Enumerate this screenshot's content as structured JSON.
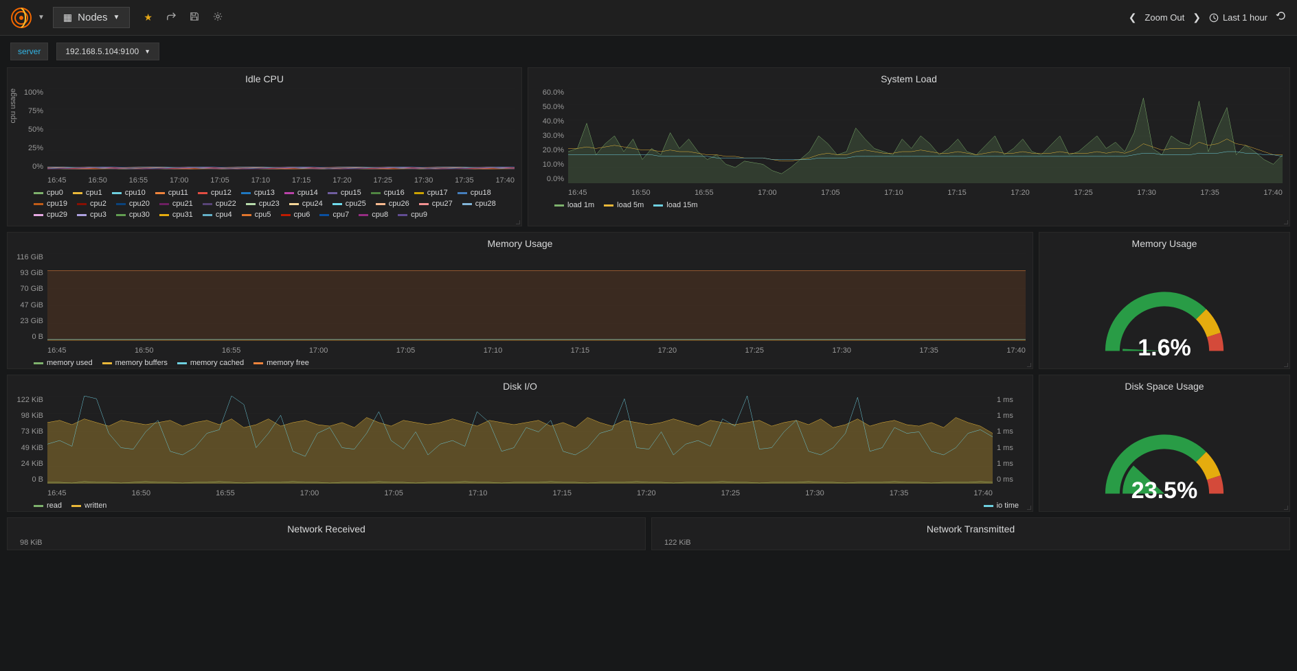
{
  "navbar": {
    "title": "Nodes",
    "zoom_out": "Zoom Out",
    "time_range": "Last 1 hour"
  },
  "subnav": {
    "label": "server",
    "value": "192.168.5.104:9100"
  },
  "time_axis": [
    "16:45",
    "16:50",
    "16:55",
    "17:00",
    "17:05",
    "17:10",
    "17:15",
    "17:20",
    "17:25",
    "17:30",
    "17:35",
    "17:40"
  ],
  "colors": {
    "panel_bg": "#1f1f20",
    "grid": "#2f2f2f",
    "text": "#d8d9da"
  },
  "panels": {
    "idle_cpu": {
      "title": "Idle CPU",
      "y_label": "cpu usage",
      "y_ticks": [
        "100%",
        "75%",
        "50%",
        "25%",
        "0%"
      ],
      "ylim": [
        0,
        100
      ],
      "series_palette": [
        "#7eb26d",
        "#eab839",
        "#6ed0e0",
        "#ef843c",
        "#e24d42",
        "#1f78c1",
        "#ba43a9",
        "#705da0",
        "#508642",
        "#cca300",
        "#447ebc",
        "#c15c17",
        "#890f02",
        "#0a437c",
        "#6d1f62",
        "#584477",
        "#b7dbab",
        "#f4d598",
        "#70dbed",
        "#f9ba8f",
        "#f29191",
        "#82b5d8",
        "#e5a8e2",
        "#aea2e0",
        "#629e51",
        "#e5ac0e",
        "#64b0c8",
        "#e0752d",
        "#bf1b00",
        "#0a50a1",
        "#962d82",
        "#614d93"
      ],
      "legend": [
        "cpu0",
        "cpu1",
        "cpu10",
        "cpu11",
        "cpu12",
        "cpu13",
        "cpu14",
        "cpu15",
        "cpu16",
        "cpu17",
        "cpu18",
        "cpu19",
        "cpu2",
        "cpu20",
        "cpu21",
        "cpu22",
        "cpu23",
        "cpu24",
        "cpu25",
        "cpu26",
        "cpu27",
        "cpu28",
        "cpu29",
        "cpu3",
        "cpu30",
        "cpu31",
        "cpu4",
        "cpu5",
        "cpu6",
        "cpu7",
        "cpu8",
        "cpu9"
      ],
      "baseline_value": 3
    },
    "system_load": {
      "title": "System Load",
      "y_ticks": [
        "60.0%",
        "50.0%",
        "40.0%",
        "30.0%",
        "20.0%",
        "10.0%",
        "0.0%"
      ],
      "ylim": [
        0,
        60
      ],
      "series": [
        {
          "name": "load 1m",
          "color": "#7eb26d",
          "fill": true,
          "data": [
            20,
            22,
            38,
            18,
            25,
            30,
            20,
            28,
            15,
            22,
            18,
            32,
            22,
            28,
            20,
            15,
            18,
            12,
            10,
            14,
            13,
            12,
            8,
            6,
            10,
            15,
            20,
            30,
            25,
            18,
            20,
            35,
            28,
            22,
            20,
            18,
            28,
            22,
            30,
            25,
            18,
            22,
            28,
            20,
            18,
            24,
            30,
            18,
            22,
            28,
            20,
            18,
            24,
            30,
            18,
            20,
            25,
            30,
            22,
            26,
            20,
            32,
            54,
            22,
            18,
            30,
            26,
            24,
            52,
            20,
            35,
            48,
            18,
            24,
            20,
            15,
            12,
            18
          ]
        },
        {
          "name": "load 5m",
          "color": "#eab839",
          "fill": false,
          "data": [
            22,
            22,
            23,
            22,
            23,
            24,
            23,
            22,
            21,
            21,
            20,
            21,
            20,
            20,
            19,
            18,
            18,
            17,
            17,
            16,
            16,
            16,
            15,
            14,
            14,
            15,
            16,
            18,
            19,
            18,
            18,
            20,
            21,
            20,
            19,
            19,
            20,
            20,
            21,
            20,
            19,
            19,
            20,
            19,
            18,
            19,
            20,
            19,
            19,
            20,
            19,
            19,
            19,
            20,
            19,
            19,
            19,
            20,
            19,
            20,
            19,
            21,
            25,
            23,
            21,
            22,
            22,
            22,
            26,
            24,
            25,
            28,
            25,
            24,
            22,
            20,
            18,
            18
          ]
        },
        {
          "name": "load 15m",
          "color": "#6ed0e0",
          "fill": false,
          "data": [
            18,
            18,
            18,
            18,
            18,
            18,
            18,
            18,
            18,
            18,
            17,
            17,
            17,
            17,
            17,
            17,
            16,
            16,
            16,
            16,
            16,
            16,
            15,
            15,
            15,
            15,
            15,
            16,
            16,
            16,
            16,
            17,
            17,
            17,
            17,
            17,
            17,
            17,
            17,
            17,
            17,
            17,
            17,
            17,
            17,
            17,
            17,
            17,
            17,
            17,
            17,
            17,
            17,
            17,
            17,
            17,
            17,
            17,
            17,
            17,
            17,
            18,
            19,
            19,
            18,
            18,
            18,
            18,
            19,
            19,
            19,
            20,
            20,
            19,
            19,
            18,
            18,
            17
          ]
        }
      ]
    },
    "memory_usage": {
      "title": "Memory Usage",
      "y_ticks": [
        "116 GiB",
        "93 GiB",
        "70 GiB",
        "47 GiB",
        "23 GiB",
        "0 B"
      ],
      "ylim": [
        0,
        116
      ],
      "series": [
        {
          "name": "memory used",
          "color": "#7eb26d",
          "value": 2
        },
        {
          "name": "memory buffers",
          "color": "#eab839",
          "value": 1
        },
        {
          "name": "memory cached",
          "color": "#6ed0e0",
          "value": 2
        },
        {
          "name": "memory free",
          "color": "#ef843c",
          "value": 93
        }
      ]
    },
    "memory_gauge": {
      "title": "Memory Usage",
      "value": "1.6%",
      "percent": 1.6,
      "colors": {
        "low": "#299c46",
        "mid": "#e5ac0e",
        "high": "#d44a3a",
        "bg": "#2f2f2f"
      }
    },
    "disk_io": {
      "title": "Disk I/O",
      "y_ticks": [
        "122 KiB",
        "98 KiB",
        "73 KiB",
        "49 KiB",
        "24 KiB",
        "0 B"
      ],
      "y_ticks_right": [
        "1 ms",
        "1 ms",
        "1 ms",
        "1 ms",
        "1 ms",
        "0 ms"
      ],
      "ylim": [
        0,
        122
      ],
      "series": [
        {
          "name": "read",
          "color": "#7eb26d",
          "fill": true,
          "data": [
            2,
            2,
            1,
            3,
            2,
            2,
            1,
            2,
            3,
            2,
            2,
            1,
            2,
            2,
            3,
            2,
            1,
            2,
            2,
            2,
            3,
            2,
            2,
            1,
            2,
            2,
            2,
            3,
            2,
            2,
            1,
            2,
            2,
            2,
            3,
            2,
            2,
            1,
            2,
            2,
            2,
            3,
            2,
            2,
            1,
            2,
            2,
            2,
            3,
            2,
            2,
            1,
            2,
            2,
            2,
            3,
            2,
            2,
            1,
            2,
            2,
            2,
            3,
            2,
            2,
            1,
            2,
            2,
            2,
            3,
            2,
            2,
            1,
            2,
            2,
            2,
            3,
            2
          ]
        },
        {
          "name": "written",
          "color": "#eab839",
          "fill": true,
          "data": [
            85,
            88,
            82,
            90,
            85,
            80,
            88,
            85,
            82,
            85,
            88,
            80,
            85,
            88,
            82,
            90,
            78,
            82,
            90,
            80,
            85,
            88,
            82,
            80,
            85,
            78,
            92,
            85,
            80,
            88,
            85,
            82,
            85,
            90,
            85,
            80,
            88,
            85,
            82,
            85,
            88,
            80,
            85,
            78,
            92,
            85,
            80,
            88,
            85,
            82,
            85,
            90,
            85,
            80,
            88,
            85,
            82,
            85,
            88,
            80,
            85,
            88,
            82,
            90,
            78,
            82,
            90,
            80,
            85,
            88,
            82,
            80,
            85,
            78,
            92,
            85,
            80,
            70
          ]
        },
        {
          "name": "io time",
          "color": "#6ed0e0",
          "fill": false,
          "right": true,
          "data": [
            55,
            60,
            52,
            122,
            118,
            70,
            50,
            48,
            72,
            88,
            45,
            40,
            50,
            70,
            75,
            122,
            110,
            50,
            70,
            95,
            45,
            38,
            70,
            78,
            50,
            48,
            70,
            100,
            60,
            48,
            72,
            40,
            55,
            60,
            52,
            100,
            85,
            45,
            50,
            78,
            72,
            88,
            45,
            40,
            50,
            70,
            75,
            118,
            50,
            48,
            72,
            40,
            55,
            60,
            52,
            90,
            80,
            122,
            48,
            50,
            72,
            88,
            45,
            40,
            50,
            70,
            120,
            45,
            50,
            78,
            70,
            72,
            45,
            40,
            50,
            70,
            75,
            65
          ]
        }
      ],
      "legend_left": [
        "read",
        "written"
      ],
      "legend_right": [
        "io time"
      ]
    },
    "disk_gauge": {
      "title": "Disk Space Usage",
      "value": "23.5%",
      "percent": 23.5,
      "colors": {
        "low": "#299c46",
        "mid": "#e5ac0e",
        "high": "#d44a3a",
        "bg": "#2f2f2f"
      }
    },
    "net_rx": {
      "title": "Network Received",
      "y_ticks": [
        "98 KiB"
      ]
    },
    "net_tx": {
      "title": "Network Transmitted",
      "y_ticks": [
        "122 KiB"
      ]
    }
  }
}
